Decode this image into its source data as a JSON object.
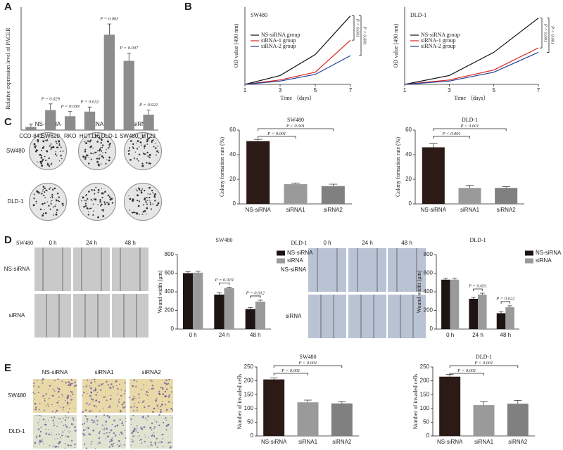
{
  "panel_letters": [
    "A",
    "B",
    "C",
    "D",
    "E"
  ],
  "image_grids": [
    {
      "columns": [
        "NS-siRNA",
        "siRNA1",
        "siRNA2"
      ],
      "rows": [
        "SW480",
        "DLD-1"
      ]
    },
    {
      "title": "SW480",
      "columns": [
        "0 h",
        "24 h",
        "48 h"
      ],
      "rows": [
        "NS-siRNA",
        "siRNA"
      ]
    },
    {
      "title": "DLD-1",
      "columns": [
        "0 h",
        "24 h",
        "48 h"
      ],
      "rows": [
        "NS-siRNA",
        "siRNA"
      ]
    },
    {
      "columns": [
        "NS-siRNA",
        "siRNA1",
        "siRNA2"
      ],
      "rows": [
        "SW480",
        "DLD-1"
      ]
    }
  ],
  "chart_data": [
    {
      "type": "bar",
      "ylabel": "Relative expression level of  PACER",
      "categories": [
        "CCD-841",
        "SW620",
        "RKO",
        "HCT116",
        "DLD-1",
        "SW480",
        "HT29"
      ],
      "values": [
        1,
        6.5,
        4.5,
        6,
        31,
        22.5,
        5
      ],
      "errors": [
        1,
        2,
        1.5,
        1.5,
        3.5,
        2.5,
        1.5
      ],
      "color": "#8c8c8c",
      "ylim": [
        0,
        40
      ],
      "annotations": [
        "P = 0.029",
        "P = 0.039",
        "P = 0.032",
        "P = 0.003",
        "P = 0.007",
        "P = 0.022"
      ]
    },
    {
      "type": "line",
      "title": "SW480",
      "xlabel": "Time （days）",
      "ylabel": "OD  value  (490 nm)",
      "x": [
        1,
        3,
        5,
        7
      ],
      "xlim": [
        1,
        7
      ],
      "xticks": [
        1,
        3,
        5,
        7
      ],
      "ylim": [
        0,
        0.7
      ],
      "series": [
        {
          "name": "NS-siRNA  group",
          "color": "#111111",
          "values": [
            0,
            0.08,
            0.27,
            0.62
          ]
        },
        {
          "name": "siRNA-1 group",
          "color": "#d9241c",
          "values": [
            0,
            0.04,
            0.11,
            0.4
          ]
        },
        {
          "name": "siRNA-2 group",
          "color": "#1f3e9a",
          "values": [
            0,
            0.03,
            0.09,
            0.26
          ]
        }
      ],
      "annotations": [
        "P < 0.001",
        "P < 0.001"
      ]
    },
    {
      "type": "line",
      "title": "DLD-1",
      "xlabel": "Time （days）",
      "ylabel": "OD  value  (490 nm)",
      "x": [
        1,
        3,
        5,
        7
      ],
      "xlim": [
        1,
        7
      ],
      "xticks": [
        1,
        3,
        5,
        7
      ],
      "ylim": [
        0,
        0.7
      ],
      "series": [
        {
          "name": "NS-siRNA  group",
          "color": "#111111",
          "values": [
            0,
            0.08,
            0.29,
            0.6
          ]
        },
        {
          "name": "siRNA-1 group",
          "color": "#d9241c",
          "values": [
            0,
            0.04,
            0.13,
            0.33
          ]
        },
        {
          "name": "siRNA-2 group",
          "color": "#1f3e9a",
          "values": [
            0,
            0.03,
            0.11,
            0.29
          ]
        }
      ],
      "annotations": [
        "P < 0.001",
        "P < 0.001"
      ]
    },
    {
      "type": "bar",
      "title": "SW480",
      "ylabel": "Colony formation rate (%)",
      "categories": [
        "NS-siRNA",
        "siRNA1",
        "siRNA2"
      ],
      "values": [
        51,
        16,
        14.5
      ],
      "errors": [
        1.5,
        1,
        1.5
      ],
      "colors": [
        "#2b1a16",
        "#9a9a9a",
        "#808080"
      ],
      "ylim": [
        0,
        60
      ],
      "yticks": [
        0,
        20,
        40,
        60
      ],
      "annotations": [
        "P < 0.001",
        "P < 0.001"
      ]
    },
    {
      "type": "bar",
      "title": "DLD-1",
      "ylabel": "Colony formation rate (%)",
      "categories": [
        "NS-siRNA",
        "siRNA1",
        "siRNA2"
      ],
      "values": [
        46,
        13,
        13
      ],
      "errors": [
        3,
        2,
        1
      ],
      "colors": [
        "#2b1a16",
        "#9a9a9a",
        "#808080"
      ],
      "ylim": [
        0,
        60
      ],
      "yticks": [
        0,
        20,
        40,
        60
      ],
      "annotations": [
        "P < 0.001",
        "P < 0.001"
      ]
    },
    {
      "type": "bar",
      "title": "SW480",
      "ylabel": "Wound width (μm)",
      "categories": [
        "0 h",
        "24 h",
        "48 h"
      ],
      "ylim": [
        0,
        800
      ],
      "yticks": [
        0,
        200,
        400,
        600,
        800
      ],
      "series": [
        {
          "name": "NS-siRNA",
          "color": "#1e1414",
          "values": [
            600,
            370,
            215
          ],
          "errors": [
            15,
            20,
            15
          ]
        },
        {
          "name": "siRNA",
          "color": "#9a9a9a",
          "values": [
            605,
            440,
            295
          ],
          "errors": [
            15,
            10,
            15
          ]
        }
      ],
      "annotations": [
        "P = 0.019",
        "P = 0.012"
      ]
    },
    {
      "type": "bar",
      "title": "DLD-1",
      "ylabel": "Wound width (μm)",
      "categories": [
        "0 h",
        "24 h",
        "48 h"
      ],
      "ylim": [
        0,
        800
      ],
      "yticks": [
        0,
        200,
        400,
        600,
        800
      ],
      "series": [
        {
          "name": "NS-siRNA",
          "color": "#1e1414",
          "values": [
            530,
            325,
            170
          ],
          "errors": [
            15,
            15,
            15
          ]
        },
        {
          "name": "siRNA",
          "color": "#9a9a9a",
          "values": [
            530,
            370,
            235
          ],
          "errors": [
            15,
            15,
            15
          ]
        }
      ],
      "annotations": [
        "P = 0.031",
        "P = 0.022"
      ]
    },
    {
      "type": "bar",
      "title": "SW480",
      "ylabel": "Number of invaded cells",
      "categories": [
        "NS-siRNA",
        "siRNA1",
        "siRNA2"
      ],
      "values": [
        205,
        122,
        118
      ],
      "errors": [
        5,
        8,
        6
      ],
      "colors": [
        "#2b1a16",
        "#9a9a9a",
        "#808080"
      ],
      "ylim": [
        0,
        250
      ],
      "yticks": [
        0,
        50,
        100,
        150,
        200,
        250
      ],
      "annotations": [
        "P < 0.001",
        "P < 0.001"
      ]
    },
    {
      "type": "bar",
      "title": "DLD-1",
      "ylabel": "Number of invaded cells",
      "categories": [
        "NS-siRNA",
        "siRNA1",
        "siRNA2"
      ],
      "values": [
        215,
        112,
        117
      ],
      "errors": [
        8,
        12,
        12
      ],
      "colors": [
        "#2b1a16",
        "#9a9a9a",
        "#808080"
      ],
      "ylim": [
        0,
        250
      ],
      "yticks": [
        0,
        50,
        100,
        150,
        200,
        250
      ],
      "annotations": [
        "P < 0.001",
        "P < 0.001"
      ]
    }
  ]
}
